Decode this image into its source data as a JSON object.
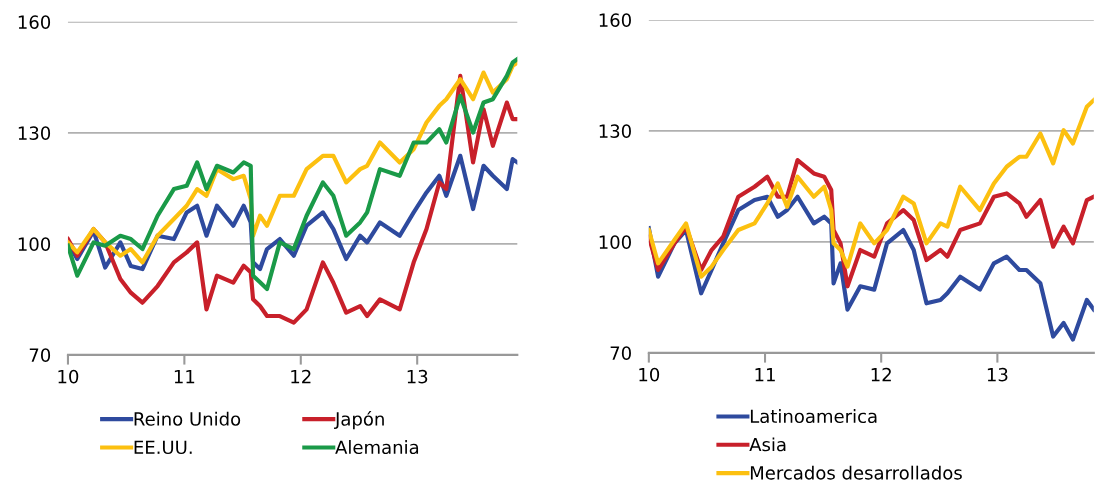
{
  "chart_data": [
    {
      "type": "line",
      "xlim": [
        10,
        13.86
      ],
      "xticks": [
        10,
        11,
        12,
        13
      ],
      "ylim": [
        70,
        160
      ],
      "yticks": [
        70,
        100,
        130,
        160
      ],
      "grid": "y",
      "legend": "bottom",
      "line_style": "solid",
      "x": [
        10,
        10.08,
        10.22,
        10.32,
        10.45,
        10.54,
        10.64,
        10.77,
        10.91,
        11.02,
        11.11,
        11.19,
        11.28,
        11.42,
        11.51,
        11.57,
        11.59,
        11.65,
        11.71,
        11.82,
        11.94,
        12.05,
        12.19,
        12.28,
        12.39,
        12.51,
        12.57,
        12.68,
        12.85,
        12.97,
        13.08,
        13.19,
        13.25,
        13.37,
        13.48,
        13.57,
        13.65,
        13.77,
        13.82,
        13.86
      ],
      "series": [
        {
          "name": "Reino Unido",
          "color": "#2e4a9e",
          "values": [
            100.4,
            95.9,
            103.5,
            93.6,
            100.4,
            94,
            93.2,
            102.2,
            101.3,
            108.5,
            110.3,
            102.2,
            110.3,
            104.9,
            110.3,
            105.8,
            95,
            93.2,
            98.6,
            101.3,
            96.8,
            104.9,
            108.5,
            104,
            95.9,
            102.2,
            100.4,
            105.8,
            102.2,
            108.5,
            113.9,
            118.4,
            113,
            123.8,
            109.4,
            121.1,
            118.4,
            114.8,
            122.9,
            122
          ]
        },
        {
          "name": "Japón",
          "color": "#c8202a",
          "values": [
            101.3,
            96.8,
            104,
            100.4,
            90.5,
            86.8,
            84.1,
            88.6,
            95,
            97.7,
            100.4,
            82.3,
            91.4,
            89.5,
            94.1,
            92.3,
            85,
            83.2,
            80.5,
            80.5,
            78.7,
            82.3,
            95,
            89.5,
            81.4,
            83.2,
            80.5,
            85,
            82.3,
            95,
            104,
            116.6,
            114.8,
            145.4,
            122,
            136.4,
            126.5,
            138.2,
            133.7,
            133.7
          ]
        },
        {
          "name": "EE.UU.",
          "color": "#fcc010",
          "values": [
            100.4,
            97.7,
            104,
            100.4,
            96.8,
            98.6,
            95,
            102.2,
            106.7,
            110.3,
            114.8,
            113,
            120.2,
            117.5,
            118.4,
            112.1,
            102.2,
            107.6,
            104.9,
            113,
            113,
            120.2,
            123.8,
            123.8,
            116.6,
            120.2,
            121.1,
            127.4,
            122,
            125.6,
            132.8,
            137.3,
            139.1,
            144.5,
            139.1,
            146.3,
            140.9,
            144.5,
            148.1,
            149
          ]
        },
        {
          "name": "Alemania",
          "color": "#1a9a48",
          "values": [
            99.5,
            91.4,
            100.4,
            99.5,
            102.2,
            101.3,
            98.6,
            107.6,
            114.8,
            115.7,
            122,
            114.8,
            121.1,
            119.3,
            122,
            121.1,
            91.4,
            89.6,
            87.8,
            100.4,
            98.6,
            107.6,
            116.6,
            113,
            102.2,
            105.8,
            108.5,
            120.2,
            118.4,
            127.4,
            127.4,
            131,
            127.4,
            140,
            130.1,
            138.2,
            139.1,
            145.4,
            149,
            149.9
          ]
        }
      ]
    },
    {
      "type": "line",
      "xlim": [
        10,
        13.83
      ],
      "xticks": [
        10,
        11,
        12,
        13
      ],
      "ylim": [
        70,
        160
      ],
      "yticks": [
        70,
        100,
        130,
        160
      ],
      "grid": "y",
      "legend": "bottom",
      "line_style": "solid",
      "x": [
        10,
        10.08,
        10.22,
        10.32,
        10.45,
        10.54,
        10.64,
        10.77,
        10.91,
        11.02,
        11.11,
        11.19,
        11.28,
        11.42,
        11.51,
        11.57,
        11.59,
        11.65,
        11.71,
        11.82,
        11.94,
        12.05,
        12.19,
        12.28,
        12.39,
        12.51,
        12.57,
        12.68,
        12.85,
        12.97,
        13.08,
        13.19,
        13.25,
        13.37,
        13.48,
        13.57,
        13.65,
        13.77,
        13.83
      ],
      "series": [
        {
          "name": "Latinoamerica",
          "color": "#2e4a9e",
          "values": [
            103.7,
            90.6,
            99.6,
            103.2,
            86.1,
            92.4,
            99.6,
            108.6,
            111.3,
            112.2,
            106.8,
            108.6,
            112.2,
            105,
            106.8,
            105,
            88.8,
            94.2,
            81.7,
            88,
            87.1,
            99.6,
            103.2,
            97.8,
            83.4,
            84.3,
            86.1,
            90.6,
            87.1,
            94.2,
            96,
            92.4,
            92.4,
            88.8,
            74.4,
            78.1,
            73.6,
            84.3,
            81.7
          ]
        },
        {
          "name": "Asia",
          "color": "#c8202a",
          "values": [
            101.4,
            92.4,
            99.6,
            104.1,
            92.4,
            97.8,
            101.4,
            112.2,
            114.9,
            117.6,
            112.2,
            112.2,
            122.1,
            118.5,
            117.6,
            114,
            103.2,
            99.6,
            88,
            97.8,
            96,
            105,
            108.6,
            105.9,
            95.1,
            97.8,
            96,
            103.2,
            105,
            112.2,
            113.1,
            110.4,
            106.8,
            111.3,
            98.7,
            104.1,
            99.6,
            111.3,
            112.2
          ]
        },
        {
          "name": "Mercados desarrollados",
          "color": "#fcc010",
          "values": [
            103.2,
            94.2,
            100.5,
            105,
            90.6,
            93.3,
            97.8,
            103.2,
            105,
            110.4,
            115.8,
            109.5,
            117.6,
            112.2,
            114.9,
            108.6,
            99.6,
            97.8,
            93.3,
            105,
            99.6,
            103.2,
            112.2,
            110.4,
            99.6,
            105,
            104.1,
            114.9,
            108.6,
            115.8,
            120.3,
            123,
            123,
            129.3,
            121.2,
            130.2,
            126.6,
            136.5,
            138.3
          ]
        }
      ]
    }
  ]
}
